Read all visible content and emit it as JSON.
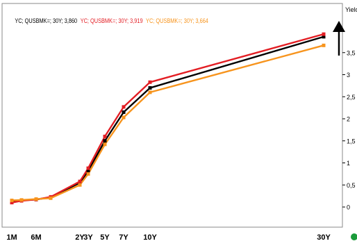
{
  "chart_data": {
    "type": "line",
    "title": "",
    "xlabel": "",
    "ylabel": "Yield",
    "ylim": [
      -0.25,
      4.0
    ],
    "yticks": [
      0,
      0.5,
      1,
      1.5,
      2,
      2.5,
      3,
      3.5
    ],
    "ytick_labels": [
      "0",
      "0,5",
      "1",
      "1,5",
      "2",
      "2,5",
      "3",
      "3,5"
    ],
    "xtick_labels": [
      {
        "label": "1M",
        "x": 0.083
      },
      {
        "label": "6M",
        "x": 0.5
      },
      {
        "label": "2Y",
        "x": 2
      },
      {
        "label": "3Y",
        "x": 3
      },
      {
        "label": "5Y",
        "x": 5
      },
      {
        "label": "7Y",
        "x": 7
      },
      {
        "label": "10Y",
        "x": 10
      },
      {
        "label": "30Y",
        "x": 30
      }
    ],
    "legend_entries": [
      {
        "text": "YC; QUSBMK=; 30Y; 3,860",
        "color": "#000000"
      },
      {
        "text": "YC; QUSBMK=; 30Y; 3,919",
        "color": "#e31e24"
      },
      {
        "text": "YC; QUSBMK=; 30Y; 3,664",
        "color": "#f7941d"
      }
    ],
    "grid": false,
    "legend_position": "top-left",
    "series": [
      {
        "color": "#000000",
        "x": [
          0.083,
          0.25,
          0.5,
          1,
          2,
          3,
          5,
          7,
          10,
          30
        ],
        "values": [
          0.12,
          0.15,
          0.17,
          0.22,
          0.55,
          0.82,
          1.5,
          2.15,
          2.7,
          3.86
        ]
      },
      {
        "color": "#e31e24",
        "x": [
          0.083,
          0.25,
          0.5,
          1,
          2,
          3,
          5,
          7,
          10,
          30
        ],
        "values": [
          0.1,
          0.14,
          0.17,
          0.23,
          0.58,
          0.88,
          1.6,
          2.27,
          2.83,
          3.919
        ]
      },
      {
        "color": "#f7941d",
        "x": [
          0.083,
          0.25,
          0.5,
          1,
          2,
          3,
          5,
          7,
          10,
          30
        ],
        "values": [
          0.15,
          0.16,
          0.18,
          0.2,
          0.5,
          0.75,
          1.42,
          2.03,
          2.6,
          3.664
        ]
      }
    ]
  },
  "colors": {
    "frame": "#8a8a8a",
    "status_dot": "#1a9b3a"
  },
  "icons": {
    "cursor": "up-arrow-icon",
    "status": "status-dot-icon"
  }
}
